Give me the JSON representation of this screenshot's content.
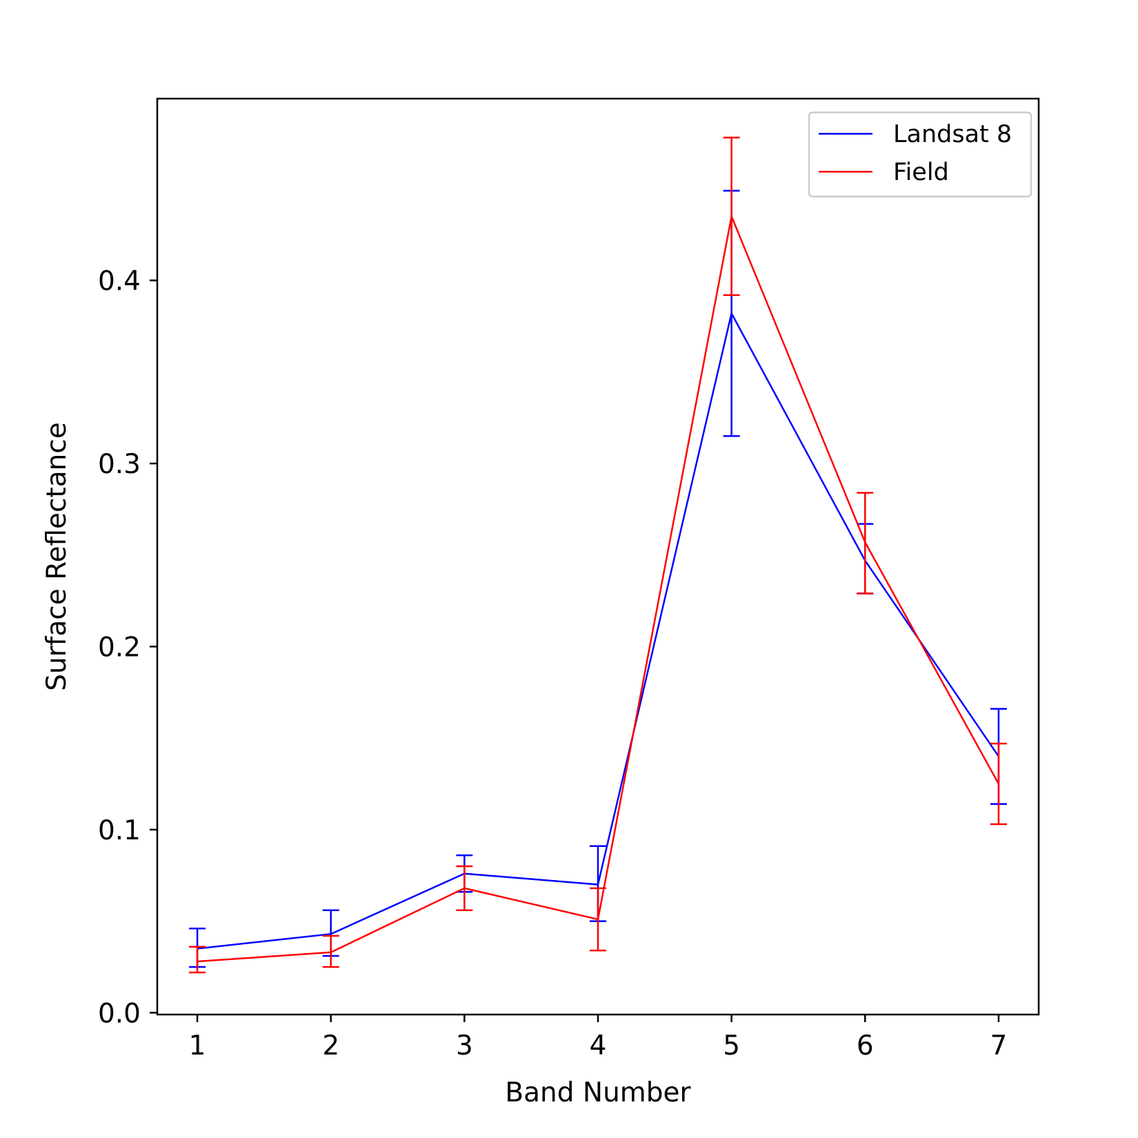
{
  "chart_data": {
    "type": "line",
    "xlabel": "Band Number",
    "ylabel": "Surface Reflectance",
    "x": [
      1,
      2,
      3,
      4,
      5,
      6,
      7
    ],
    "xlim": [
      0.7,
      7.3
    ],
    "ylim": [
      -0.001,
      0.4993
    ],
    "xticks": [
      1,
      2,
      3,
      4,
      5,
      6,
      7
    ],
    "yticks": [
      0.0,
      0.1,
      0.2,
      0.3,
      0.4
    ],
    "ytick_labels": [
      "0.0",
      "0.1",
      "0.2",
      "0.3",
      "0.4"
    ],
    "grid": false,
    "legend_position": "top-right",
    "series": [
      {
        "name": "Landsat 8",
        "color": "#0000ff",
        "values": [
          0.035,
          0.043,
          0.076,
          0.07,
          0.382,
          0.247,
          0.14
        ],
        "error_low": [
          0.025,
          0.031,
          0.066,
          0.05,
          0.315,
          0.229,
          0.114
        ],
        "error_high": [
          0.046,
          0.056,
          0.086,
          0.091,
          0.449,
          0.267,
          0.166
        ]
      },
      {
        "name": "Field",
        "color": "#ff0000",
        "values": [
          0.028,
          0.033,
          0.068,
          0.051,
          0.435,
          0.257,
          0.125
        ],
        "error_low": [
          0.022,
          0.025,
          0.056,
          0.034,
          0.392,
          0.229,
          0.103
        ],
        "error_high": [
          0.036,
          0.042,
          0.08,
          0.068,
          0.478,
          0.284,
          0.147
        ]
      }
    ]
  }
}
